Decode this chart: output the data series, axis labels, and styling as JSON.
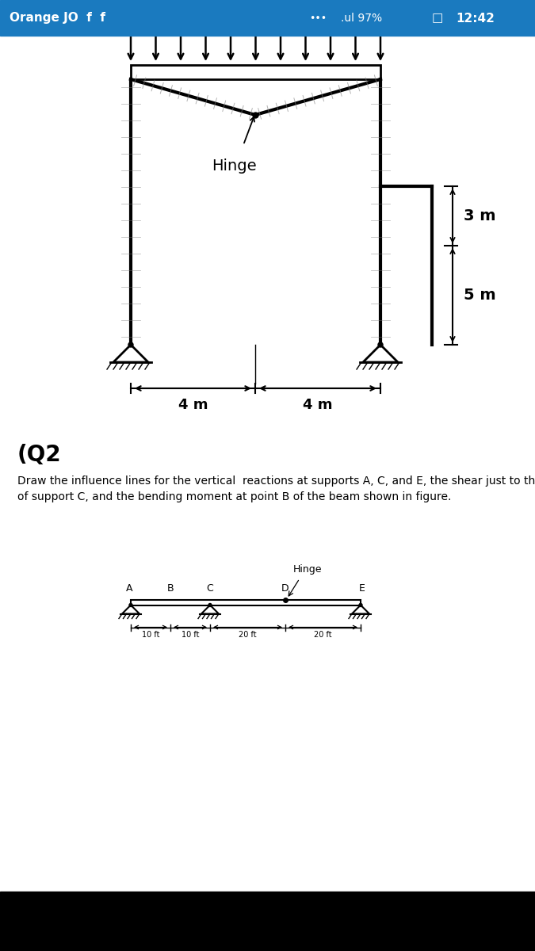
{
  "status_bar_bg": "#1a7abf",
  "bg_color": "#ffffff",
  "title_q2": "(Q2",
  "frame_label_3m": "3 m",
  "frame_label_5m": "5 m",
  "frame_label_4m_left": "4 m",
  "frame_label_4m_right": "4 m",
  "hinge_label": "Hinge",
  "hinge_beam_label": "Hinge",
  "nav_bar_color": "#000000"
}
